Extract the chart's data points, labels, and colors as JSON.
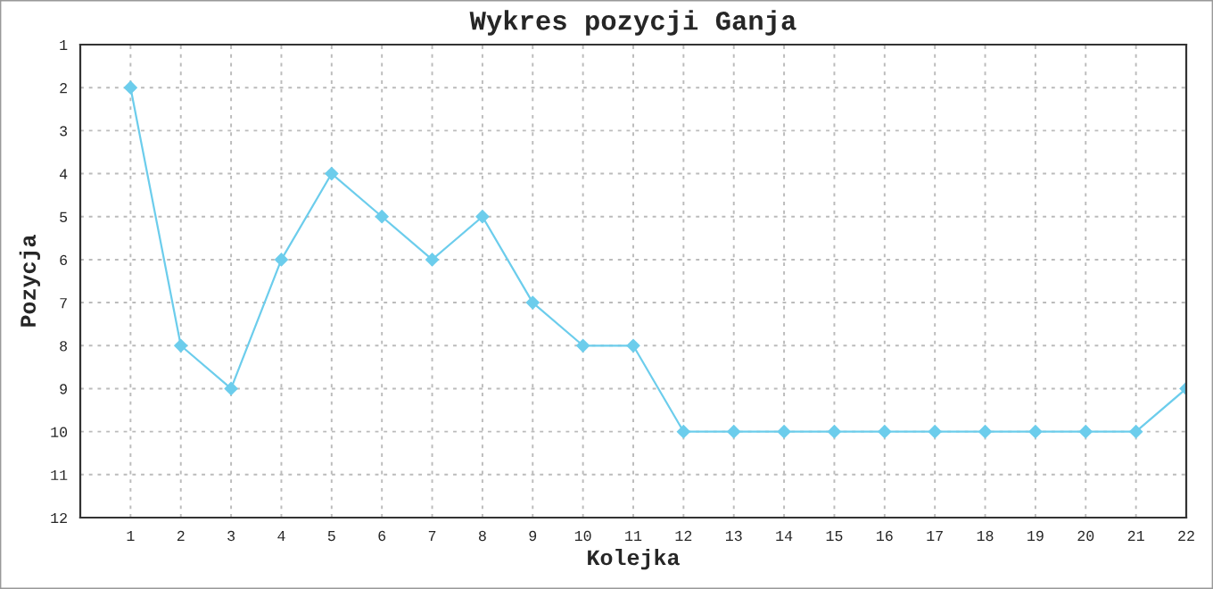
{
  "chart_data": {
    "type": "line",
    "title": "Wykres pozycji Ganja",
    "xlabel": "Kolejka",
    "ylabel": "Pozycja",
    "x": [
      1,
      2,
      3,
      4,
      5,
      6,
      7,
      8,
      9,
      10,
      11,
      12,
      13,
      14,
      15,
      16,
      17,
      18,
      19,
      20,
      21,
      22
    ],
    "series": [
      {
        "color": "#6ccdec",
        "values": [
          2,
          8,
          9,
          6,
          4,
          5,
          6,
          5,
          7,
          8,
          8,
          10,
          10,
          10,
          10,
          10,
          10,
          10,
          10,
          10,
          10,
          9
        ]
      }
    ],
    "xlim": [
      0,
      22
    ],
    "xticks": [
      1,
      2,
      3,
      4,
      5,
      6,
      7,
      8,
      9,
      10,
      11,
      12,
      13,
      14,
      15,
      16,
      17,
      18,
      19,
      20,
      21,
      22
    ],
    "ylim": [
      12,
      1
    ],
    "yticks": [
      1,
      2,
      3,
      4,
      5,
      6,
      7,
      8,
      9,
      10,
      11,
      12
    ],
    "grid": true,
    "marker": "diamond",
    "line_style": "solid"
  }
}
